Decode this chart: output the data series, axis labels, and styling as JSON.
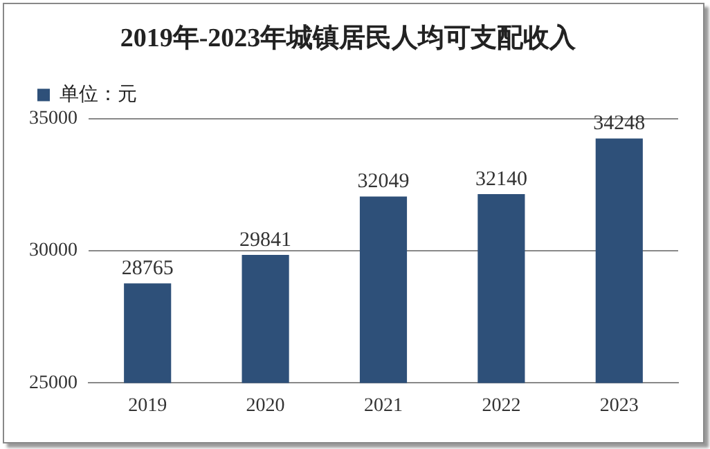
{
  "chart_data": {
    "type": "bar",
    "title": "2019年-2023年城镇居民人均可支配收入",
    "categories": [
      "2019",
      "2020",
      "2021",
      "2022",
      "2023"
    ],
    "series": [
      {
        "name": "单位：元",
        "color": "#2e5079",
        "values": [
          28765,
          29841,
          32049,
          32140,
          34248
        ]
      }
    ],
    "ylim": [
      25000,
      35000
    ],
    "yticks": [
      25000,
      30000,
      35000
    ],
    "grid": "y",
    "legend": "top left",
    "data_labels": true
  }
}
